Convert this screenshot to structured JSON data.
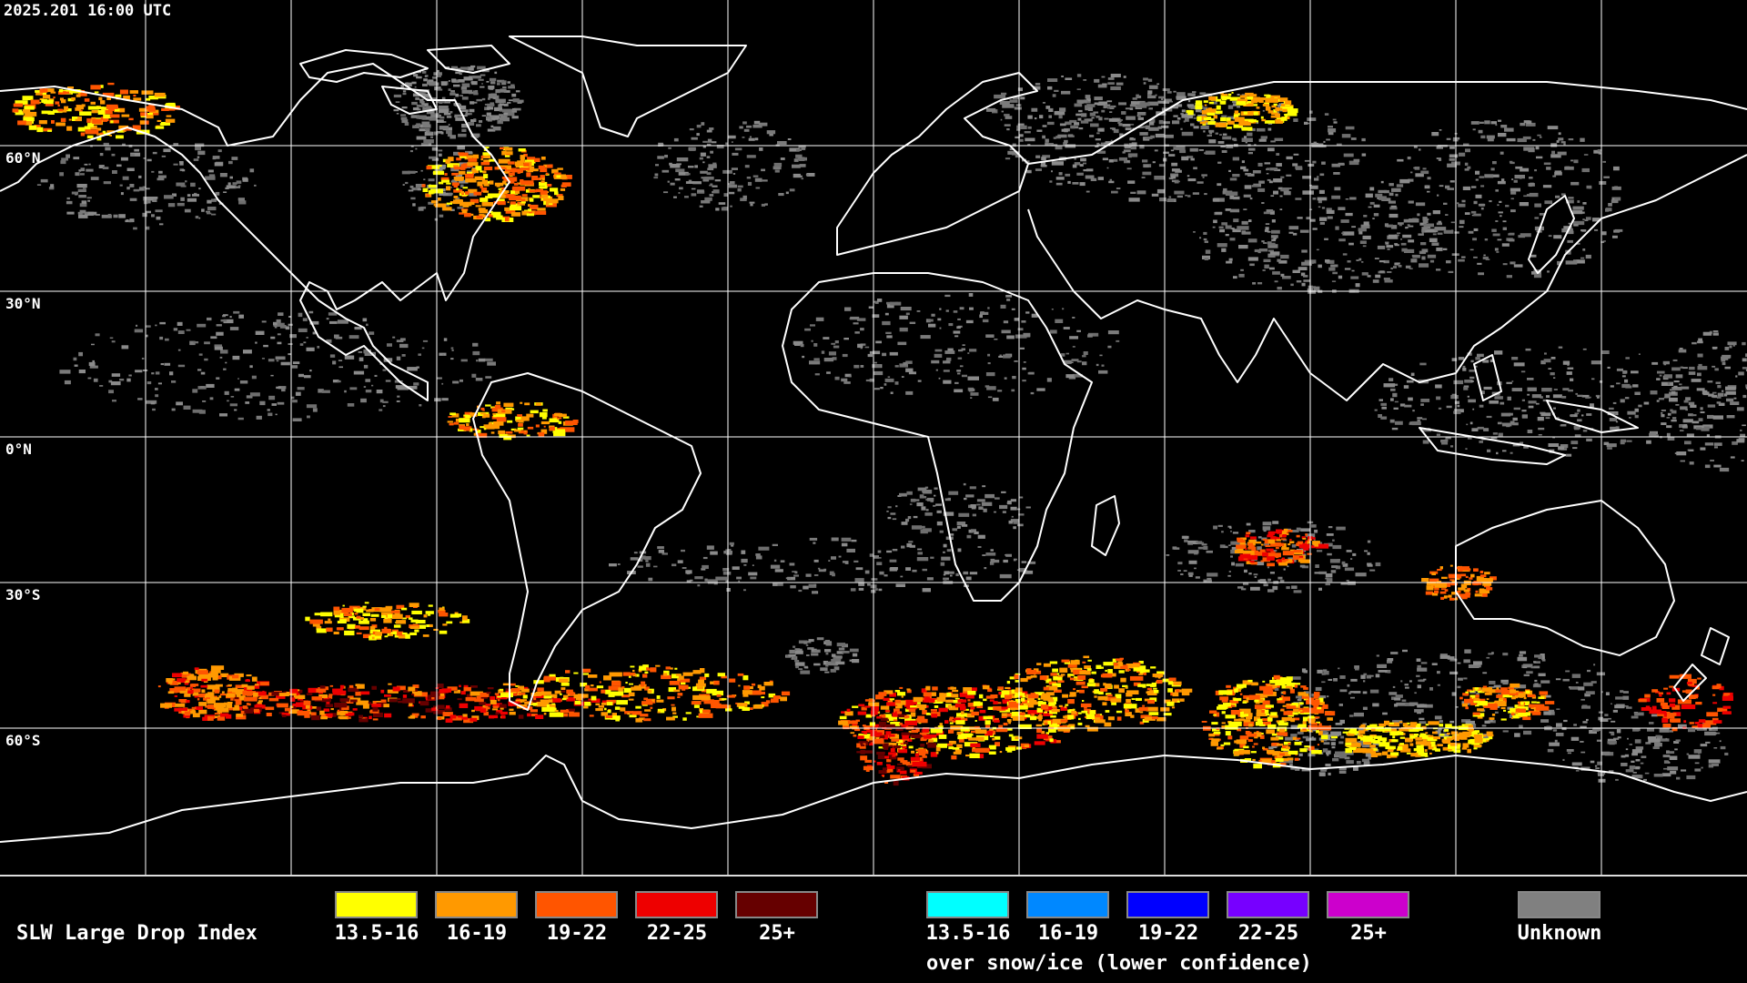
{
  "header": {
    "timestamp": "2025.201 16:00 UTC"
  },
  "map": {
    "latitude_labels": [
      "60°N",
      "30°N",
      "0°N",
      "30°S",
      "60°S"
    ],
    "colors": {
      "background": "#000000",
      "grid": "#ffffff",
      "coastline": "#ffffff",
      "unknown": "#808080"
    }
  },
  "legend": {
    "title": "SLW Large Drop Index",
    "warm_scale": [
      {
        "label": "13.5-16",
        "color": "#ffff00"
      },
      {
        "label": "16-19",
        "color": "#ff9900"
      },
      {
        "label": "19-22",
        "color": "#ff5500"
      },
      {
        "label": "22-25",
        "color": "#ee0000"
      },
      {
        "label": "25+",
        "color": "#660000"
      }
    ],
    "snow_ice_scale": [
      {
        "label": "13.5-16",
        "color": "#00ffff"
      },
      {
        "label": "16-19",
        "color": "#0088ff"
      },
      {
        "label": "19-22",
        "color": "#0000ff"
      },
      {
        "label": "22-25",
        "color": "#7700ff"
      },
      {
        "label": "25+",
        "color": "#cc00cc"
      }
    ],
    "snow_ice_caption": "over snow/ice (lower confidence)",
    "unknown": {
      "label": "Unknown",
      "color": "#808080"
    }
  }
}
